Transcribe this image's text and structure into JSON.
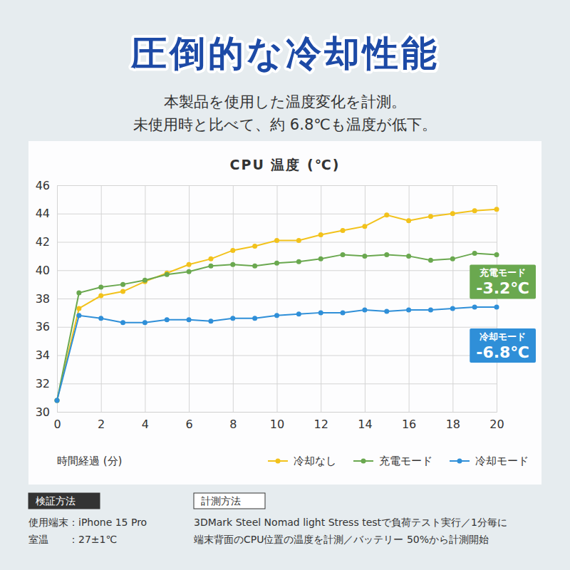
{
  "chart_data": {
    "type": "line",
    "title": "圧倒的な冷却性能",
    "subtitle": [
      "本製品を使用した温度変化を計測。",
      "未使用時と比べて、約 6.8℃も温度が低下。"
    ],
    "chart_title": "CPU 温度 (℃)",
    "xlabel": "時間経過 (分)",
    "x": [
      0,
      1,
      2,
      3,
      4,
      5,
      6,
      7,
      8,
      9,
      10,
      11,
      12,
      13,
      14,
      15,
      16,
      17,
      18,
      19,
      20
    ],
    "series": [
      {
        "name": "冷却なし",
        "color": "#f2c21b",
        "values": [
          30.8,
          37.3,
          38.2,
          38.5,
          39.2,
          39.8,
          40.4,
          40.8,
          41.4,
          41.7,
          42.1,
          42.1,
          42.5,
          42.8,
          43.1,
          43.9,
          43.5,
          43.8,
          44.0,
          44.2,
          44.3
        ]
      },
      {
        "name": "充電モード",
        "color": "#6aa84f",
        "values": [
          30.8,
          38.4,
          38.8,
          39.0,
          39.3,
          39.7,
          39.9,
          40.3,
          40.4,
          40.3,
          40.5,
          40.6,
          40.8,
          41.1,
          41.0,
          41.1,
          41.0,
          40.7,
          40.8,
          41.2,
          41.1
        ]
      },
      {
        "name": "冷却モード",
        "color": "#2f8fd8",
        "values": [
          30.8,
          36.8,
          36.6,
          36.3,
          36.3,
          36.5,
          36.5,
          36.4,
          36.6,
          36.6,
          36.8,
          36.9,
          37.0,
          37.0,
          37.2,
          37.1,
          37.2,
          37.2,
          37.3,
          37.4,
          37.4
        ]
      }
    ],
    "xlim": [
      0,
      20
    ],
    "xticks": [
      0,
      2,
      4,
      6,
      8,
      10,
      12,
      14,
      16,
      18,
      20
    ],
    "ylim": [
      30,
      46
    ],
    "yticks": [
      30,
      32,
      34,
      36,
      38,
      40,
      42,
      44,
      46
    ],
    "grid": true,
    "legend": "bottom",
    "marker": "circle",
    "annotations": [
      {
        "title": "充電モード",
        "text": "-3.2℃"
      },
      {
        "title": "冷却モード",
        "text": "-6.8℃"
      }
    ],
    "notes": [
      {
        "heading": "検証方法",
        "lines": [
          "使用端末：iPhone 15 Pro",
          "室温　　：27±1℃"
        ]
      },
      {
        "heading": "計測方法",
        "lines": [
          "3DMark Steel Nomad light Stress testで負荷テスト実行／1分毎に",
          "端末背面のCPU位置の温度を計測／バッテリー 50%から計測開始"
        ]
      }
    ]
  }
}
